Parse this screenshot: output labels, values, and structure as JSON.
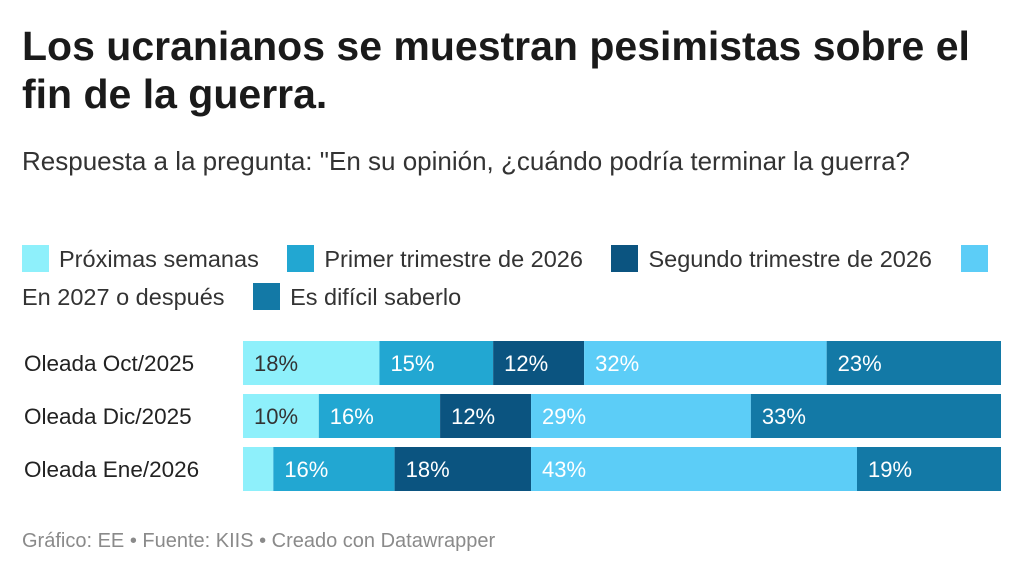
{
  "title": "Los ucranianos se muestran pesimistas sobre el fin de la guerra.",
  "subtitle": "Respuesta a la pregunta: \"En su opinión, ¿cuándo podría terminar la guerra?",
  "footer": "Gráfico: EE • Fuente: KIIS • Creado con Datawrapper",
  "chart_data": {
    "type": "bar",
    "orientation": "horizontal-stacked",
    "xlim": [
      0,
      100
    ],
    "categories": [
      "Oleada Oct/2025",
      "Oleada Dic/2025",
      "Oleada Ene/2026"
    ],
    "series": [
      {
        "name": "Próximas semanas",
        "color": "#8ef0fb",
        "values": [
          18,
          10,
          4
        ],
        "labels": [
          "18%",
          "10%",
          ""
        ],
        "label_color": "#333333"
      },
      {
        "name": "Primer trimestre de 2026",
        "color": "#22a7d2",
        "values": [
          15,
          16,
          16
        ],
        "labels": [
          "15%",
          "16%",
          "16%"
        ],
        "label_color": "#ffffff"
      },
      {
        "name": "Segundo trimestre de 2026",
        "color": "#0b5480",
        "values": [
          12,
          12,
          18
        ],
        "labels": [
          "12%",
          "12%",
          "18%"
        ],
        "label_color": "#ffffff"
      },
      {
        "name": "En 2027 o después",
        "color": "#5ccdf7",
        "values": [
          32,
          29,
          43
        ],
        "labels": [
          "32%",
          "29%",
          "43%"
        ],
        "label_color": "#ffffff"
      },
      {
        "name": "Es difícil saberlo",
        "color": "#1379a6",
        "values": [
          23,
          33,
          19
        ],
        "labels": [
          "23%",
          "33%",
          "19%"
        ],
        "label_color": "#ffffff"
      }
    ]
  }
}
